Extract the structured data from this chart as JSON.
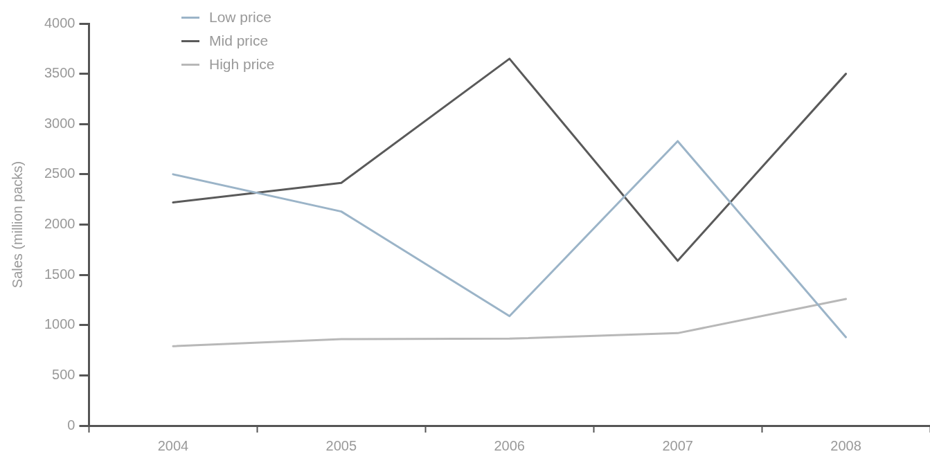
{
  "chart_data": {
    "type": "line",
    "categories": [
      "2004",
      "2005",
      "2006",
      "2007",
      "2008"
    ],
    "ylabel": "Sales (million packs)",
    "ylim": [
      0,
      4000
    ],
    "yticks": [
      0,
      500,
      1000,
      1500,
      2000,
      2500,
      3000,
      3500,
      4000
    ],
    "series": [
      {
        "name": "Low price",
        "color": "#9bb4c8",
        "values": [
          2500,
          2130,
          1090,
          2830,
          880
        ]
      },
      {
        "name": "Mid price",
        "color": "#5a5a5a",
        "values": [
          2220,
          2415,
          3650,
          1640,
          3500
        ]
      },
      {
        "name": "High price",
        "color": "#b8b8b8",
        "values": [
          790,
          860,
          865,
          920,
          1260
        ]
      }
    ],
    "legend": "top left",
    "grid": false,
    "marker": "none",
    "line_style": "solid"
  }
}
